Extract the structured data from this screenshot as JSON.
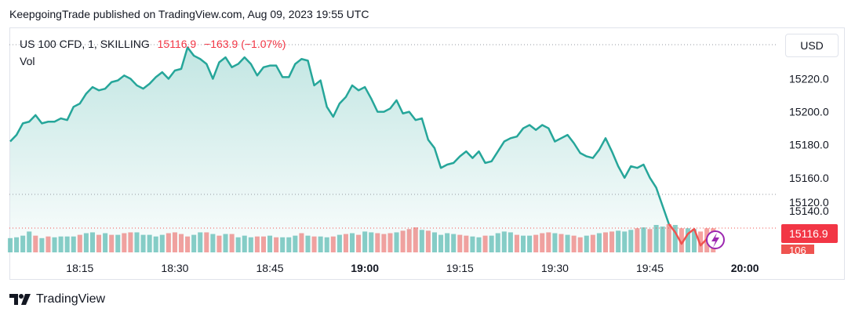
{
  "header": {
    "published": "KeepgoingTrade published on TradingView.com, Aug 09, 2023 19:55 UTC"
  },
  "legend": {
    "symbol": "US 100 CFD, 1, SKILLING",
    "price": "15116.9",
    "change": "−163.9 (−1.07%)",
    "volume_label": "Vol"
  },
  "currency_button": "USD",
  "footer": {
    "brand": "TradingView"
  },
  "colors": {
    "up": "#26a69a",
    "down": "#ef5350",
    "last_price_bg": "#f23645",
    "dotted_line": "#9598a1"
  },
  "chart_data": {
    "type": "area",
    "y_ticks": [
      15220.0,
      15200.0,
      15180.0,
      15160.0,
      15140.0
    ],
    "y_tick_labels": [
      "15220.0",
      "15200.0",
      "15180.0",
      "15160.0",
      "15140.0"
    ],
    "ylim": [
      15111,
      15244
    ],
    "x_ticks": [
      "18:15",
      "18:30",
      "18:45",
      "19:00",
      "19:15",
      "19:30",
      "19:45",
      "20:00"
    ],
    "x_tick_times": [
      "18:15",
      "18:30",
      "18:45",
      "19:00",
      "19:15",
      "19:30",
      "19:45",
      "20:00"
    ],
    "x_tick_bold": [
      false,
      false,
      false,
      true,
      false,
      false,
      false,
      true
    ],
    "x_range": [
      "18:04",
      "20:05"
    ],
    "price_series": [
      {
        "t": "18:04",
        "v": 15182
      },
      {
        "t": "18:05",
        "v": 15186
      },
      {
        "t": "18:06",
        "v": 15193
      },
      {
        "t": "18:07",
        "v": 15194
      },
      {
        "t": "18:08",
        "v": 15198
      },
      {
        "t": "18:09",
        "v": 15193
      },
      {
        "t": "18:10",
        "v": 15194
      },
      {
        "t": "18:11",
        "v": 15194
      },
      {
        "t": "18:12",
        "v": 15196
      },
      {
        "t": "18:13",
        "v": 15195
      },
      {
        "t": "18:14",
        "v": 15203
      },
      {
        "t": "18:15",
        "v": 15205
      },
      {
        "t": "18:16",
        "v": 15211
      },
      {
        "t": "18:17",
        "v": 15215
      },
      {
        "t": "18:18",
        "v": 15213
      },
      {
        "t": "18:19",
        "v": 15214
      },
      {
        "t": "18:20",
        "v": 15218
      },
      {
        "t": "18:21",
        "v": 15219
      },
      {
        "t": "18:22",
        "v": 15222
      },
      {
        "t": "18:23",
        "v": 15220
      },
      {
        "t": "18:24",
        "v": 15216
      },
      {
        "t": "18:25",
        "v": 15214
      },
      {
        "t": "18:26",
        "v": 15217
      },
      {
        "t": "18:27",
        "v": 15221
      },
      {
        "t": "18:28",
        "v": 15224
      },
      {
        "t": "18:29",
        "v": 15220
      },
      {
        "t": "18:30",
        "v": 15225
      },
      {
        "t": "18:31",
        "v": 15226
      },
      {
        "t": "18:32",
        "v": 15239
      },
      {
        "t": "18:33",
        "v": 15234
      },
      {
        "t": "18:34",
        "v": 15232
      },
      {
        "t": "18:35",
        "v": 15229
      },
      {
        "t": "18:36",
        "v": 15220
      },
      {
        "t": "18:37",
        "v": 15230
      },
      {
        "t": "18:38",
        "v": 15233
      },
      {
        "t": "18:39",
        "v": 15227
      },
      {
        "t": "18:40",
        "v": 15229
      },
      {
        "t": "18:41",
        "v": 15233
      },
      {
        "t": "18:42",
        "v": 15229
      },
      {
        "t": "18:43",
        "v": 15222
      },
      {
        "t": "18:44",
        "v": 15227
      },
      {
        "t": "18:45",
        "v": 15228
      },
      {
        "t": "18:46",
        "v": 15228
      },
      {
        "t": "18:47",
        "v": 15221
      },
      {
        "t": "18:48",
        "v": 15221
      },
      {
        "t": "18:49",
        "v": 15229
      },
      {
        "t": "18:50",
        "v": 15232
      },
      {
        "t": "18:51",
        "v": 15231
      },
      {
        "t": "18:52",
        "v": 15216
      },
      {
        "t": "18:53",
        "v": 15219
      },
      {
        "t": "18:54",
        "v": 15203
      },
      {
        "t": "18:55",
        "v": 15197
      },
      {
        "t": "18:56",
        "v": 15205
      },
      {
        "t": "18:57",
        "v": 15209
      },
      {
        "t": "18:58",
        "v": 15216
      },
      {
        "t": "18:59",
        "v": 15213
      },
      {
        "t": "19:00",
        "v": 15215
      },
      {
        "t": "19:01",
        "v": 15208
      },
      {
        "t": "19:02",
        "v": 15200
      },
      {
        "t": "19:03",
        "v": 15200
      },
      {
        "t": "19:04",
        "v": 15202
      },
      {
        "t": "19:05",
        "v": 15207
      },
      {
        "t": "19:06",
        "v": 15199
      },
      {
        "t": "19:07",
        "v": 15200
      },
      {
        "t": "19:08",
        "v": 15195
      },
      {
        "t": "19:09",
        "v": 15196
      },
      {
        "t": "19:10",
        "v": 15183
      },
      {
        "t": "19:11",
        "v": 15178
      },
      {
        "t": "19:12",
        "v": 15166
      },
      {
        "t": "19:13",
        "v": 15168
      },
      {
        "t": "19:14",
        "v": 15169
      },
      {
        "t": "19:15",
        "v": 15173
      },
      {
        "t": "19:16",
        "v": 15176
      },
      {
        "t": "19:17",
        "v": 15172
      },
      {
        "t": "19:18",
        "v": 15176
      },
      {
        "t": "19:19",
        "v": 15169
      },
      {
        "t": "19:20",
        "v": 15170
      },
      {
        "t": "19:21",
        "v": 15176
      },
      {
        "t": "19:22",
        "v": 15182
      },
      {
        "t": "19:23",
        "v": 15184
      },
      {
        "t": "19:24",
        "v": 15185
      },
      {
        "t": "19:25",
        "v": 15190
      },
      {
        "t": "19:26",
        "v": 15192
      },
      {
        "t": "19:27",
        "v": 15189
      },
      {
        "t": "19:28",
        "v": 15192
      },
      {
        "t": "19:29",
        "v": 15190
      },
      {
        "t": "19:30",
        "v": 15182
      },
      {
        "t": "19:31",
        "v": 15184
      },
      {
        "t": "19:32",
        "v": 15186
      },
      {
        "t": "19:33",
        "v": 15181
      },
      {
        "t": "19:34",
        "v": 15175
      },
      {
        "t": "19:35",
        "v": 15173
      },
      {
        "t": "19:36",
        "v": 15172
      },
      {
        "t": "19:37",
        "v": 15177
      },
      {
        "t": "19:38",
        "v": 15184
      },
      {
        "t": "19:39",
        "v": 15176
      },
      {
        "t": "19:40",
        "v": 15167
      },
      {
        "t": "19:41",
        "v": 15160
      },
      {
        "t": "19:42",
        "v": 15167
      },
      {
        "t": "19:43",
        "v": 15166
      },
      {
        "t": "19:44",
        "v": 15168
      },
      {
        "t": "19:45",
        "v": 15160
      },
      {
        "t": "19:46",
        "v": 15154
      },
      {
        "t": "19:47",
        "v": 15143
      },
      {
        "t": "19:48",
        "v": 15132
      },
      {
        "t": "19:49",
        "v": 15127
      },
      {
        "t": "19:50",
        "v": 15120
      },
      {
        "t": "19:51",
        "v": 15126
      },
      {
        "t": "19:52",
        "v": 15129
      },
      {
        "t": "19:53",
        "v": 15119
      },
      {
        "t": "19:54",
        "v": 15123
      },
      {
        "t": "19:55",
        "v": 15117
      }
    ],
    "volume_bars": [
      {
        "v": 44,
        "up": true
      },
      {
        "v": 45,
        "up": true
      },
      {
        "v": 47,
        "up": true
      },
      {
        "v": 52,
        "up": true
      },
      {
        "v": 47,
        "up": false
      },
      {
        "v": 44,
        "up": true
      },
      {
        "v": 46,
        "up": false
      },
      {
        "v": 45,
        "up": true
      },
      {
        "v": 46,
        "up": true
      },
      {
        "v": 46,
        "up": true
      },
      {
        "v": 46,
        "up": true
      },
      {
        "v": 48,
        "up": false
      },
      {
        "v": 50,
        "up": true
      },
      {
        "v": 51,
        "up": true
      },
      {
        "v": 48,
        "up": false
      },
      {
        "v": 50,
        "up": true
      },
      {
        "v": 48,
        "up": false
      },
      {
        "v": 48,
        "up": true
      },
      {
        "v": 50,
        "up": false
      },
      {
        "v": 51,
        "up": false
      },
      {
        "v": 51,
        "up": true
      },
      {
        "v": 48,
        "up": true
      },
      {
        "v": 48,
        "up": true
      },
      {
        "v": 46,
        "up": true
      },
      {
        "v": 48,
        "up": true
      },
      {
        "v": 50,
        "up": false
      },
      {
        "v": 51,
        "up": false
      },
      {
        "v": 49,
        "up": false
      },
      {
        "v": 46,
        "up": false
      },
      {
        "v": 48,
        "up": true
      },
      {
        "v": 51,
        "up": true
      },
      {
        "v": 51,
        "up": false
      },
      {
        "v": 49,
        "up": true
      },
      {
        "v": 47,
        "up": false
      },
      {
        "v": 49,
        "up": true
      },
      {
        "v": 49,
        "up": false
      },
      {
        "v": 45,
        "up": true
      },
      {
        "v": 47,
        "up": true
      },
      {
        "v": 45,
        "up": true
      },
      {
        "v": 46,
        "up": false
      },
      {
        "v": 46,
        "up": false
      },
      {
        "v": 47,
        "up": true
      },
      {
        "v": 45,
        "up": false
      },
      {
        "v": 45,
        "up": true
      },
      {
        "v": 45,
        "up": true
      },
      {
        "v": 47,
        "up": true
      },
      {
        "v": 50,
        "up": false
      },
      {
        "v": 47,
        "up": true
      },
      {
        "v": 46,
        "up": false
      },
      {
        "v": 46,
        "up": true
      },
      {
        "v": 45,
        "up": true
      },
      {
        "v": 46,
        "up": false
      },
      {
        "v": 48,
        "up": true
      },
      {
        "v": 49,
        "up": false
      },
      {
        "v": 50,
        "up": true
      },
      {
        "v": 48,
        "up": false
      },
      {
        "v": 52,
        "up": true
      },
      {
        "v": 51,
        "up": true
      },
      {
        "v": 50,
        "up": false
      },
      {
        "v": 49,
        "up": false
      },
      {
        "v": 50,
        "up": false
      },
      {
        "v": 51,
        "up": true
      },
      {
        "v": 53,
        "up": false
      },
      {
        "v": 55,
        "up": false
      },
      {
        "v": 57,
        "up": false
      },
      {
        "v": 54,
        "up": true
      },
      {
        "v": 53,
        "up": false
      },
      {
        "v": 51,
        "up": true
      },
      {
        "v": 48,
        "up": true
      },
      {
        "v": 50,
        "up": true
      },
      {
        "v": 49,
        "up": true
      },
      {
        "v": 48,
        "up": false
      },
      {
        "v": 47,
        "up": false
      },
      {
        "v": 46,
        "up": true
      },
      {
        "v": 45,
        "up": true
      },
      {
        "v": 47,
        "up": false
      },
      {
        "v": 47,
        "up": true
      },
      {
        "v": 50,
        "up": true
      },
      {
        "v": 52,
        "up": true
      },
      {
        "v": 51,
        "up": true
      },
      {
        "v": 48,
        "up": false
      },
      {
        "v": 47,
        "up": true
      },
      {
        "v": 47,
        "up": true
      },
      {
        "v": 48,
        "up": false
      },
      {
        "v": 50,
        "up": false
      },
      {
        "v": 51,
        "up": false
      },
      {
        "v": 50,
        "up": true
      },
      {
        "v": 49,
        "up": false
      },
      {
        "v": 48,
        "up": true
      },
      {
        "v": 47,
        "up": false
      },
      {
        "v": 45,
        "up": false
      },
      {
        "v": 47,
        "up": true
      },
      {
        "v": 48,
        "up": false
      },
      {
        "v": 50,
        "up": true
      },
      {
        "v": 51,
        "up": false
      },
      {
        "v": 52,
        "up": false
      },
      {
        "v": 53,
        "up": true
      },
      {
        "v": 52,
        "up": true
      },
      {
        "v": 54,
        "up": true
      },
      {
        "v": 56,
        "up": false
      },
      {
        "v": 57,
        "up": true
      },
      {
        "v": 55,
        "up": false
      },
      {
        "v": 60,
        "up": true
      },
      {
        "v": 58,
        "up": true
      },
      {
        "v": 61,
        "up": false
      },
      {
        "v": 60,
        "up": true
      },
      {
        "v": 56,
        "up": false
      },
      {
        "v": 56,
        "up": true
      },
      {
        "v": 55,
        "up": true
      },
      {
        "v": 52,
        "up": false
      },
      {
        "v": 56,
        "up": false
      },
      {
        "v": 56,
        "up": false
      }
    ],
    "last_price_label": "15116.9",
    "last_volume_label": "106",
    "hidden_partial_label": "15120.0"
  }
}
